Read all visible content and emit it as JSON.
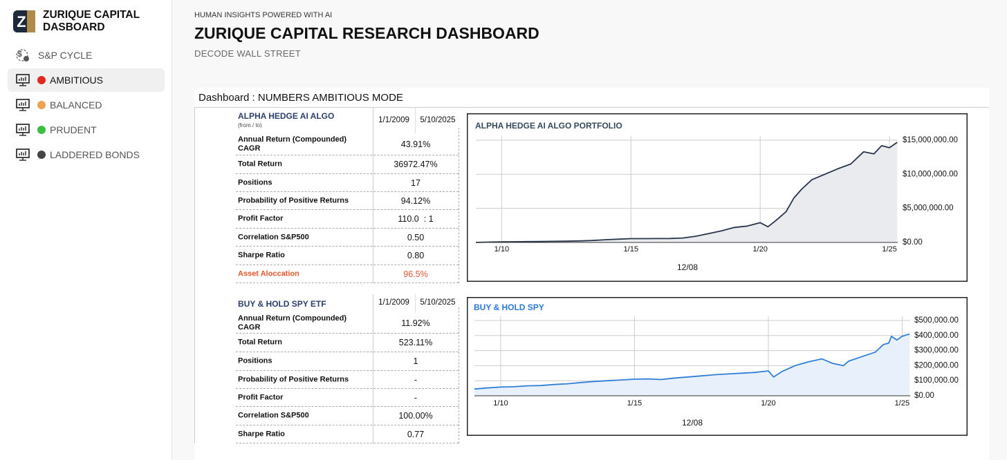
{
  "sidebar": {
    "brand": "ZURIQUE CAPITAL DASBOARD",
    "nav": [
      {
        "label": "S&P CYCLE"
      },
      {
        "label": "AMBITIOUS",
        "active": true,
        "dot": "#e3261f"
      },
      {
        "label": "BALANCED",
        "dot": "#f0a24e"
      },
      {
        "label": "PRUDENT",
        "dot": "#3cbf3c"
      },
      {
        "label": "LADDERED BONDS",
        "dot": "#444444"
      }
    ]
  },
  "header": {
    "kicker": "HUMAN INSIGHTS POWERED WITH AI",
    "title": "ZURIQUE CAPITAL RESEARCH DASHBOARD",
    "subtitle": "DECODE WALL STREET"
  },
  "panel_title": "Dashboard : NUMBERS AMBITIOUS MODE",
  "tables": [
    {
      "name": "ALPHA HEDGE AI ALGO",
      "note": "(from / to)",
      "from": "1/1/2009",
      "to": "5/10/2025",
      "rows": [
        {
          "label": "Annual Return (Compounded) CAGR",
          "value": "43.91%"
        },
        {
          "label": "Total Return",
          "value": "36972.47%"
        },
        {
          "label": "Positions",
          "value": "17"
        },
        {
          "label": "Probability of Positive Returns",
          "value": "94.12%"
        },
        {
          "label": "Profit Factor",
          "value": "110.0  : 1"
        },
        {
          "label": "Correlation S&P500",
          "value": "0.50"
        },
        {
          "label": "Sharpe Ratio",
          "value": "0.80"
        },
        {
          "label": "Asset Aloccation",
          "value": "96.5%",
          "color": "#e2562f"
        }
      ]
    },
    {
      "name": "BUY & HOLD SPY ETF",
      "from": "1/1/2009",
      "to": "5/10/2025",
      "rows": [
        {
          "label": "Annual Return (Compounded) CAGR",
          "value": "11.92%"
        },
        {
          "label": "Total Return",
          "value": "523.11%"
        },
        {
          "label": "Positions",
          "value": "1"
        },
        {
          "label": "Probability of Positive Returns",
          "value": "-"
        },
        {
          "label": "Profit Factor",
          "value": "-"
        },
        {
          "label": "Correlation S&P500",
          "value": "100.00%"
        },
        {
          "label": "Sharpe Ratio",
          "value": "0.77"
        }
      ]
    }
  ],
  "chart_data": [
    {
      "type": "line",
      "title": "ALPHA HEDGE AI ALGO PORTFOLIO",
      "title_color": "#34495e",
      "color": "#27344a",
      "fill": "#e9ebee",
      "grid": true,
      "x": [
        2009.0,
        2009.5,
        2010,
        2010.5,
        2011,
        2011.5,
        2012,
        2012.5,
        2013,
        2013.5,
        2014,
        2014.5,
        2015,
        2015.5,
        2016,
        2016.5,
        2017,
        2017.5,
        2018,
        2018.5,
        2019,
        2019.5,
        2020,
        2020.3,
        2020.6,
        2021,
        2021.3,
        2021.6,
        2022,
        2022.5,
        2023,
        2023.5,
        2024,
        2024.4,
        2024.7,
        2025,
        2025.3
      ],
      "values": [
        0,
        50000,
        80000,
        100000,
        120000,
        140000,
        160000,
        180000,
        220000,
        280000,
        400000,
        480000,
        560000,
        560000,
        570000,
        580000,
        650000,
        900000,
        1300000,
        1700000,
        2200000,
        2400000,
        2900000,
        2300000,
        3200000,
        4500000,
        6500000,
        7800000,
        9200000,
        10000000,
        10800000,
        11500000,
        13300000,
        13000000,
        14200000,
        13900000,
        14700000
      ],
      "xlim": [
        2009.0,
        2025.32
      ],
      "xticks": [
        {
          "value": 2010,
          "label": "1/10"
        },
        {
          "value": 2015,
          "label": "1/15"
        },
        {
          "value": 2020,
          "label": "1/20"
        },
        {
          "value": 2025,
          "label": "1/25"
        }
      ],
      "xlabel": "12/08",
      "ylim": [
        0,
        15000000
      ],
      "yticks": [
        {
          "value": 0,
          "label": "$0.00"
        },
        {
          "value": 5000000,
          "label": "$5,000,000.00"
        },
        {
          "value": 10000000,
          "label": "$10,000,000.00"
        },
        {
          "value": 15000000,
          "label": "$15,000,000.00"
        }
      ]
    },
    {
      "type": "line",
      "title": "BUY & HOLD SPY",
      "title_color": "#2b78d6",
      "color": "#2f7ed8",
      "fill": "#e8f0fb",
      "grid": true,
      "x": [
        2009.02,
        2009.5,
        2010,
        2010.5,
        2011,
        2011.5,
        2012,
        2012.5,
        2013,
        2013.5,
        2014,
        2014.5,
        2015,
        2015.5,
        2016,
        2016.5,
        2017,
        2017.5,
        2018,
        2018.5,
        2019,
        2019.5,
        2020,
        2020.2,
        2020.5,
        2021,
        2021.5,
        2022,
        2022.4,
        2022.8,
        2023,
        2023.5,
        2024,
        2024.3,
        2024.5,
        2024.6,
        2024.8,
        2025,
        2025.28
      ],
      "values": [
        45000,
        52000,
        58000,
        60000,
        66000,
        68000,
        75000,
        80000,
        88000,
        95000,
        100000,
        105000,
        110000,
        112000,
        108000,
        118000,
        125000,
        132000,
        140000,
        145000,
        150000,
        155000,
        165000,
        125000,
        160000,
        200000,
        225000,
        245000,
        215000,
        200000,
        230000,
        260000,
        290000,
        340000,
        350000,
        395000,
        370000,
        395000,
        410000
      ],
      "xlim": [
        2009.02,
        2025.3
      ],
      "xticks": [
        {
          "value": 2010,
          "label": "1/10"
        },
        {
          "value": 2015,
          "label": "1/15"
        },
        {
          "value": 2020,
          "label": "1/20"
        },
        {
          "value": 2025,
          "label": "1/25"
        }
      ],
      "xlabel": "12/08",
      "ylim": [
        0,
        500000
      ],
      "yticks": [
        {
          "value": 0,
          "label": "$0.00"
        },
        {
          "value": 100000,
          "label": "$100,000.00"
        },
        {
          "value": 200000,
          "label": "$200,000.00"
        },
        {
          "value": 300000,
          "label": "$300,000.00"
        },
        {
          "value": 400000,
          "label": "$400,000.00"
        },
        {
          "value": 500000,
          "label": "$500,000.00"
        }
      ]
    }
  ]
}
